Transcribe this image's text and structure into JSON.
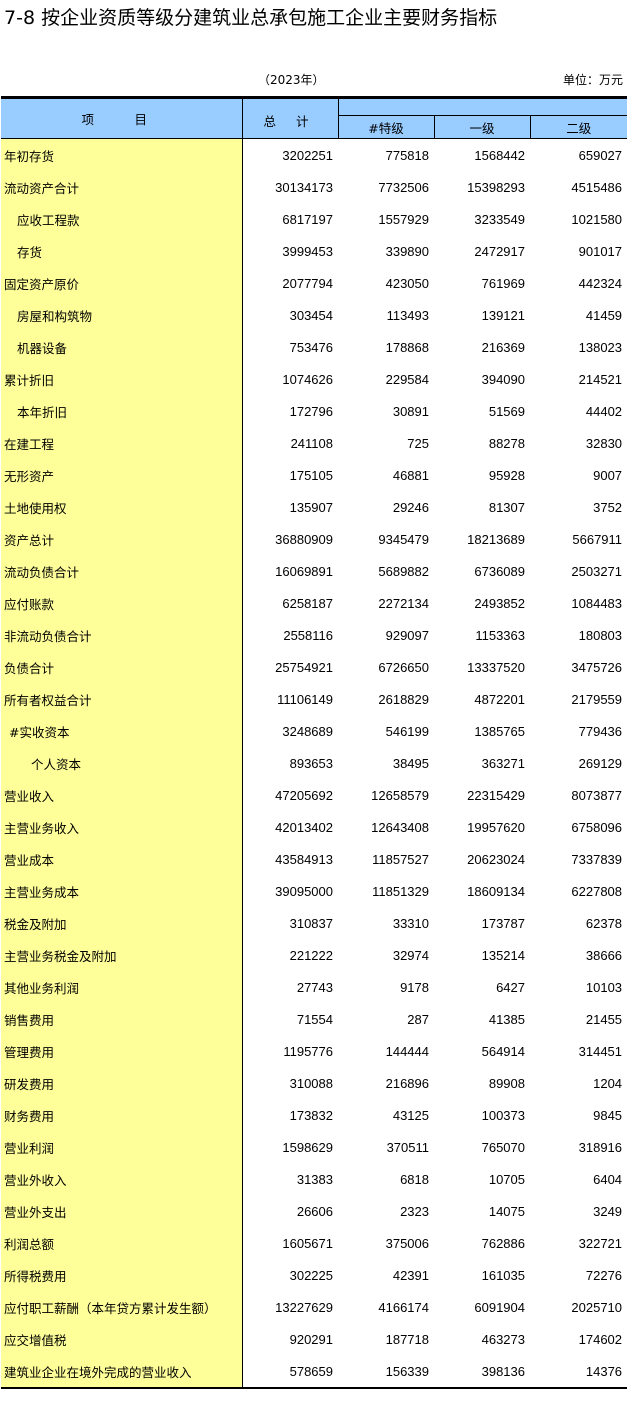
{
  "title": "7-8  按企业资质等级分建筑业总承包施工企业主要财务指标",
  "year": "（2023年）",
  "unit": "单位：万元",
  "colors": {
    "header_bg": "#99CCFF",
    "label_bg": "#FFFF99"
  },
  "columns": {
    "item": "项　目",
    "total": "总 计",
    "special": "#特级",
    "first": "一级",
    "second": "二级"
  },
  "rows": [
    {
      "label": "年初存货",
      "indent": 0,
      "values": [
        "3202251",
        "775818",
        "1568442",
        "659027"
      ]
    },
    {
      "label": "流动资产合计",
      "indent": 0,
      "values": [
        "30134173",
        "7732506",
        "15398293",
        "4515486"
      ]
    },
    {
      "label": "应收工程款",
      "indent": 1,
      "values": [
        "6817197",
        "1557929",
        "3233549",
        "1021580"
      ]
    },
    {
      "label": "存货",
      "indent": 1,
      "values": [
        "3999453",
        "339890",
        "2472917",
        "901017"
      ]
    },
    {
      "label": "固定资产原价",
      "indent": 0,
      "values": [
        "2077794",
        "423050",
        "761969",
        "442324"
      ]
    },
    {
      "label": "房屋和构筑物",
      "indent": 1,
      "values": [
        "303454",
        "113493",
        "139121",
        "41459"
      ]
    },
    {
      "label": "机器设备",
      "indent": 1,
      "values": [
        "753476",
        "178868",
        "216369",
        "138023"
      ]
    },
    {
      "label": "累计折旧",
      "indent": 0,
      "values": [
        "1074626",
        "229584",
        "394090",
        "214521"
      ]
    },
    {
      "label": "本年折旧",
      "indent": 1,
      "values": [
        "172796",
        "30891",
        "51569",
        "44402"
      ]
    },
    {
      "label": "在建工程",
      "indent": 0,
      "values": [
        "241108",
        "725",
        "88278",
        "32830"
      ]
    },
    {
      "label": "无形资产",
      "indent": 0,
      "values": [
        "175105",
        "46881",
        "95928",
        "9007"
      ]
    },
    {
      "label": "土地使用权",
      "indent": 0,
      "values": [
        "135907",
        "29246",
        "81307",
        "3752"
      ]
    },
    {
      "label": "资产总计",
      "indent": 0,
      "values": [
        "36880909",
        "9345479",
        "18213689",
        "5667911"
      ]
    },
    {
      "label": "流动负债合计",
      "indent": 0,
      "values": [
        "16069891",
        "5689882",
        "6736089",
        "2503271"
      ]
    },
    {
      "label": "应付账款",
      "indent": 0,
      "values": [
        "6258187",
        "2272134",
        "2493852",
        "1084483"
      ]
    },
    {
      "label": "非流动负债合计",
      "indent": 0,
      "values": [
        "2558116",
        "929097",
        "1153363",
        "180803"
      ]
    },
    {
      "label": "负债合计",
      "indent": 0,
      "values": [
        "25754921",
        "6726650",
        "13337520",
        "3475726"
      ]
    },
    {
      "label": "所有者权益合计",
      "indent": 0,
      "values": [
        "11106149",
        "2618829",
        "4872201",
        "2179559"
      ]
    },
    {
      "label": "#实收资本",
      "indent": "h",
      "values": [
        "3248689",
        "546199",
        "1385765",
        "779436"
      ]
    },
    {
      "label": "个人资本",
      "indent": 2,
      "values": [
        "893653",
        "38495",
        "363271",
        "269129"
      ]
    },
    {
      "label": "营业收入",
      "indent": 0,
      "values": [
        "47205692",
        "12658579",
        "22315429",
        "8073877"
      ]
    },
    {
      "label": "主营业务收入",
      "indent": 0,
      "values": [
        "42013402",
        "12643408",
        "19957620",
        "6758096"
      ]
    },
    {
      "label": "营业成本",
      "indent": 0,
      "values": [
        "43584913",
        "11857527",
        "20623024",
        "7337839"
      ]
    },
    {
      "label": "主营业务成本",
      "indent": 0,
      "values": [
        "39095000",
        "11851329",
        "18609134",
        "6227808"
      ]
    },
    {
      "label": "税金及附加",
      "indent": 0,
      "values": [
        "310837",
        "33310",
        "173787",
        "62378"
      ]
    },
    {
      "label": "主营业务税金及附加",
      "indent": 0,
      "values": [
        "221222",
        "32974",
        "135214",
        "38666"
      ]
    },
    {
      "label": "其他业务利润",
      "indent": 0,
      "values": [
        "27743",
        "9178",
        "6427",
        "10103"
      ]
    },
    {
      "label": "销售费用",
      "indent": 0,
      "values": [
        "71554",
        "287",
        "41385",
        "21455"
      ]
    },
    {
      "label": "管理费用",
      "indent": 0,
      "values": [
        "1195776",
        "144444",
        "564914",
        "314451"
      ]
    },
    {
      "label": "研发费用",
      "indent": 0,
      "values": [
        "310088",
        "216896",
        "89908",
        "1204"
      ]
    },
    {
      "label": "财务费用",
      "indent": 0,
      "values": [
        "173832",
        "43125",
        "100373",
        "9845"
      ]
    },
    {
      "label": "营业利润",
      "indent": 0,
      "values": [
        "1598629",
        "370511",
        "765070",
        "318916"
      ]
    },
    {
      "label": "营业外收入",
      "indent": 0,
      "values": [
        "31383",
        "6818",
        "10705",
        "6404"
      ]
    },
    {
      "label": "营业外支出",
      "indent": 0,
      "values": [
        "26606",
        "2323",
        "14075",
        "3249"
      ]
    },
    {
      "label": "利润总额",
      "indent": 0,
      "values": [
        "1605671",
        "375006",
        "762886",
        "322721"
      ]
    },
    {
      "label": "所得税费用",
      "indent": 0,
      "values": [
        "302225",
        "42391",
        "161035",
        "72276"
      ]
    },
    {
      "label": "应付职工薪酬（本年贷方累计发生额）",
      "indent": 0,
      "values": [
        "13227629",
        "4166174",
        "6091904",
        "2025710"
      ]
    },
    {
      "label": "应交增值税",
      "indent": 0,
      "values": [
        "920291",
        "187718",
        "463273",
        "174602"
      ]
    },
    {
      "label": "建筑业企业在境外完成的营业收入",
      "indent": 0,
      "values": [
        "578659",
        "156339",
        "398136",
        "14376"
      ]
    }
  ]
}
